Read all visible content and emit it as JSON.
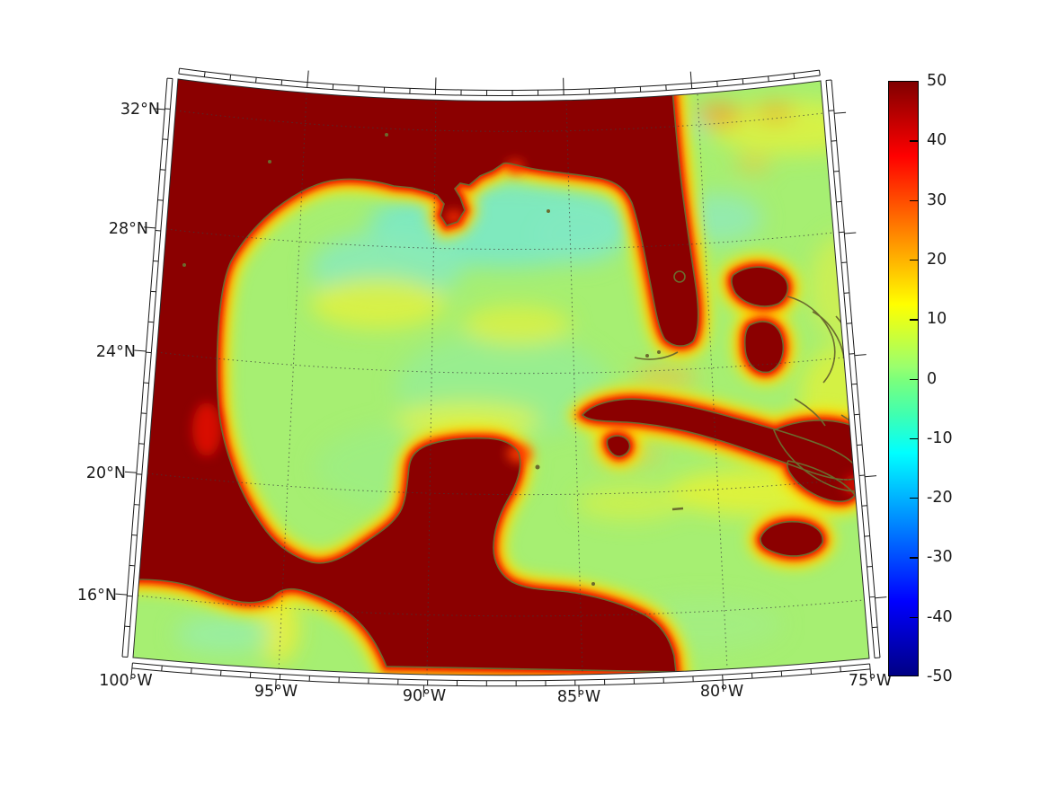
{
  "figure": {
    "title": "",
    "x_axis": {
      "tick_labels": [
        "100°W",
        "95°W",
        "90°W",
        "85°W",
        "80°W",
        "75°W"
      ]
    },
    "y_axis": {
      "tick_labels": [
        "32°N",
        "28°N",
        "24°N",
        "20°N",
        "16°N"
      ]
    },
    "colorbar": {
      "tick_labels": [
        "50",
        "40",
        "30",
        "20",
        "10",
        "0",
        "-10",
        "-20",
        "-30",
        "-40",
        "-50"
      ],
      "min": -50,
      "max": 50,
      "colormap": "jet"
    },
    "colors": {
      "land_saturated": "#8b0000",
      "coastline": "#6b6b2e",
      "ocean_base": "#a6ef72",
      "frame": "#000000",
      "graticule": "#3c3c3c",
      "background": "#ffffff"
    }
  },
  "chart_data": {
    "type": "heatmap",
    "title": "",
    "region": "Gulf of Mexico and northwest Caribbean Sea",
    "projection": "conic map projection (fan-shaped frame), longitude 100°W to 75°W, latitude about 14°N to 33°N",
    "x_ticks": [
      "100°W",
      "95°W",
      "90°W",
      "85°W",
      "80°W",
      "75°W"
    ],
    "y_ticks": [
      "32°N",
      "28°N",
      "24°N",
      "20°N",
      "16°N"
    ],
    "colorbar_ticks": [
      50,
      40,
      30,
      20,
      10,
      0,
      -10,
      -20,
      -30,
      -40,
      -50
    ],
    "colorbar_range": [
      -50,
      50
    ],
    "colormap": "jet",
    "grid": "dashed graticule at 5-degree longitude and 4-degree latitude intervals",
    "values_by_region": [
      {
        "region": "land: USA Gulf states, Mexico, Central America, Cuba, Hispaniola, Jamaica, Bahamas",
        "value": ">= 50 (saturated dark red)"
      },
      {
        "region": "coastal fringe surrounding all land",
        "value": "15 to 45 (yellow to orange to red gradient toward shore)"
      },
      {
        "region": "open Gulf of Mexico interior",
        "value": "0 to 10 (yellow-green mottle)"
      },
      {
        "region": "northern Gulf shelf water off Louisiana/Texas",
        "value": "-5 to 2 (pale aqua-green)"
      },
      {
        "region": "Atlantic east of Florida and around Bahamas",
        "value": "5 to 20 (yellow-green with orange spots near 32N)"
      },
      {
        "region": "Caribbean south of Cuba / around Jamaica",
        "value": "5 to 15 (yellow-green, yellow band south of Cuba)"
      },
      {
        "region": "Pacific Ocean off southern Mexico (bottom-left corner)",
        "value": "0 to 8 (green with yellow streak near 95W)"
      }
    ]
  }
}
